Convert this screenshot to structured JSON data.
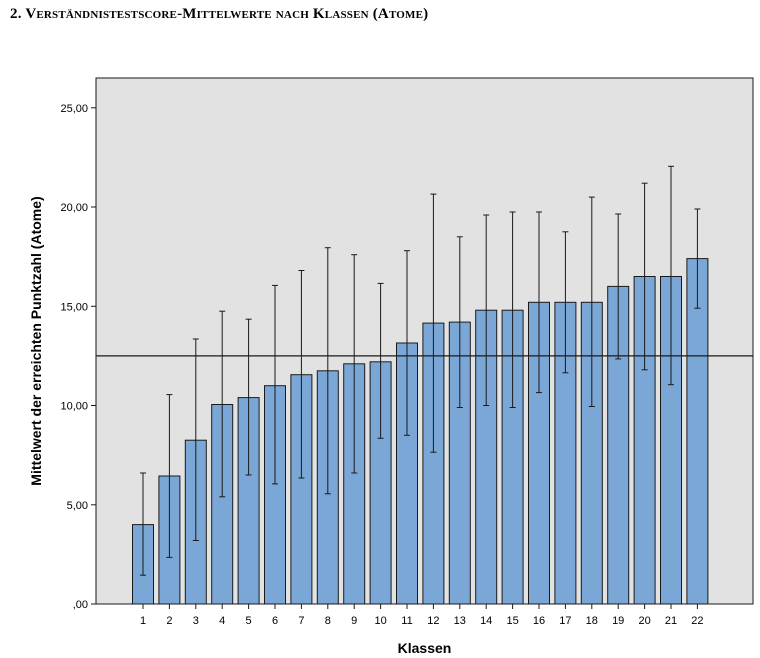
{
  "heading": "2. Verständnistestscore-Mittelwerte nach Klassen (Atome)",
  "chart_data": {
    "type": "bar",
    "title": "",
    "xlabel": "Klassen",
    "ylabel": "Mittelwert der erreichten Punktzahl (Atome)",
    "ylim": [
      0,
      26.5
    ],
    "yticks": [
      {
        "value": 0,
        "label": ",00"
      },
      {
        "value": 5,
        "label": "5,00"
      },
      {
        "value": 10,
        "label": "10,00"
      },
      {
        "value": 15,
        "label": "15,00"
      },
      {
        "value": 20,
        "label": "20,00"
      },
      {
        "value": 25,
        "label": "25,00"
      }
    ],
    "categories": [
      "1",
      "2",
      "3",
      "4",
      "5",
      "6",
      "7",
      "8",
      "9",
      "10",
      "11",
      "12",
      "13",
      "14",
      "15",
      "16",
      "17",
      "18",
      "19",
      "20",
      "21",
      "22"
    ],
    "values": [
      4.0,
      6.45,
      8.25,
      10.05,
      10.4,
      11.0,
      11.55,
      11.75,
      12.1,
      12.2,
      13.15,
      14.15,
      14.2,
      14.8,
      14.8,
      15.2,
      15.2,
      15.2,
      16.0,
      16.5,
      16.5,
      17.4
    ],
    "error_low": [
      1.45,
      2.35,
      3.2,
      5.4,
      6.5,
      6.05,
      6.35,
      5.55,
      6.6,
      8.35,
      8.5,
      7.65,
      9.9,
      10.0,
      9.9,
      10.65,
      11.65,
      9.95,
      12.35,
      11.8,
      11.05,
      14.9
    ],
    "error_high": [
      6.6,
      10.55,
      13.35,
      14.75,
      14.35,
      16.05,
      16.8,
      17.95,
      17.6,
      16.15,
      17.8,
      20.65,
      18.5,
      19.6,
      19.75,
      19.75,
      18.75,
      20.5,
      19.65,
      21.2,
      22.05,
      19.9
    ],
    "reference_line": 12.5,
    "grid": false,
    "colors": {
      "bar_fill": "#7aa7d6",
      "bar_stroke": "#1a1a1a",
      "plot_bg": "#e2e2e2",
      "error_bar": "#1a1a1a",
      "reference_line": "#1a1a1a"
    }
  }
}
